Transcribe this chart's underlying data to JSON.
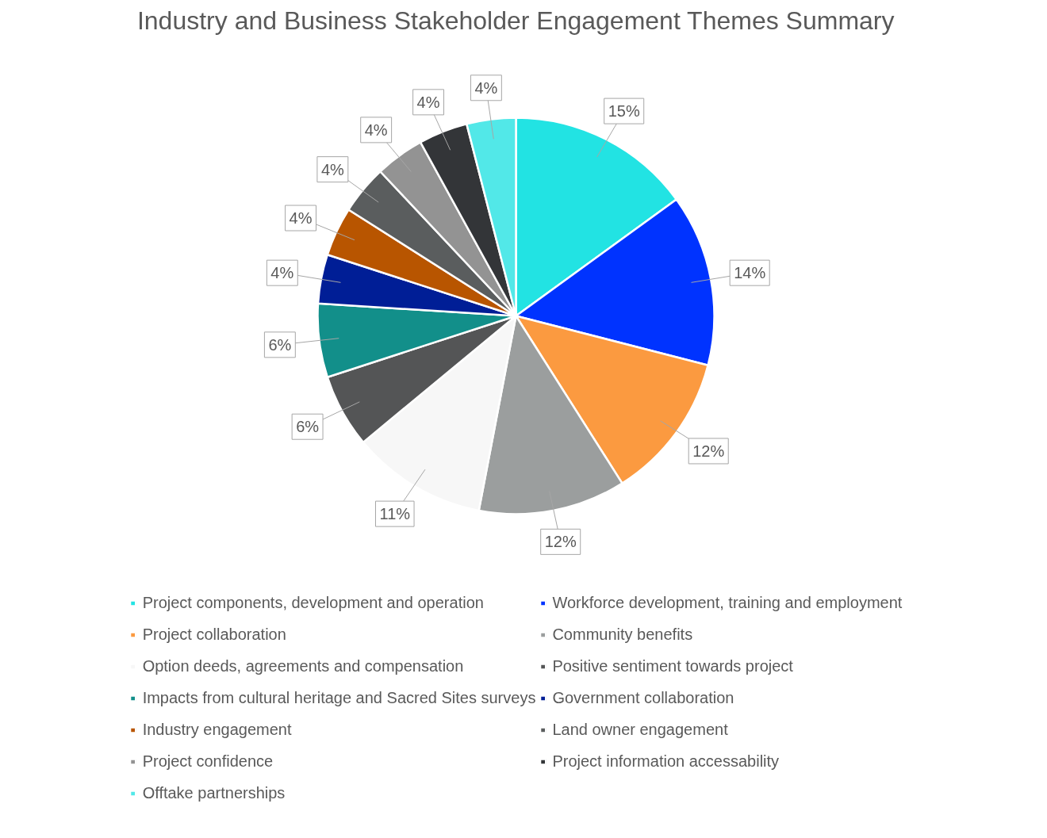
{
  "chart_data": {
    "type": "pie",
    "title": "Industry and Business Stakeholder Engagement Themes Summary",
    "categories": [
      "Project components, development and operation",
      "Workforce development, training and employment",
      "Project collaboration",
      "Community benefits",
      "Option deeds, agreements and compensation",
      "Positive sentiment towards project",
      "Impacts from cultural heritage and Sacred Sites surveys",
      "Government collaboration",
      "Industry engagement",
      "Land owner engagement",
      "Project confidence",
      "Project information accessability",
      "Offtake partnerships"
    ],
    "values": [
      15,
      14,
      12,
      12,
      11,
      6,
      6,
      4,
      4,
      4,
      4,
      4,
      4
    ],
    "value_labels": [
      "15%",
      "14%",
      "12%",
      "12%",
      "11%",
      "6%",
      "6%",
      "4%",
      "4%",
      "4%",
      "4%",
      "4%",
      "4%"
    ],
    "colors": [
      "#22e3e3",
      "#0033ff",
      "#fb9a40",
      "#9b9e9e",
      "#f7f7f7",
      "#545556",
      "#128f8a",
      "#001e96",
      "#b85500",
      "#5a5d5e",
      "#939393",
      "#333538",
      "#52e8e8"
    ],
    "legend": "bottom"
  }
}
